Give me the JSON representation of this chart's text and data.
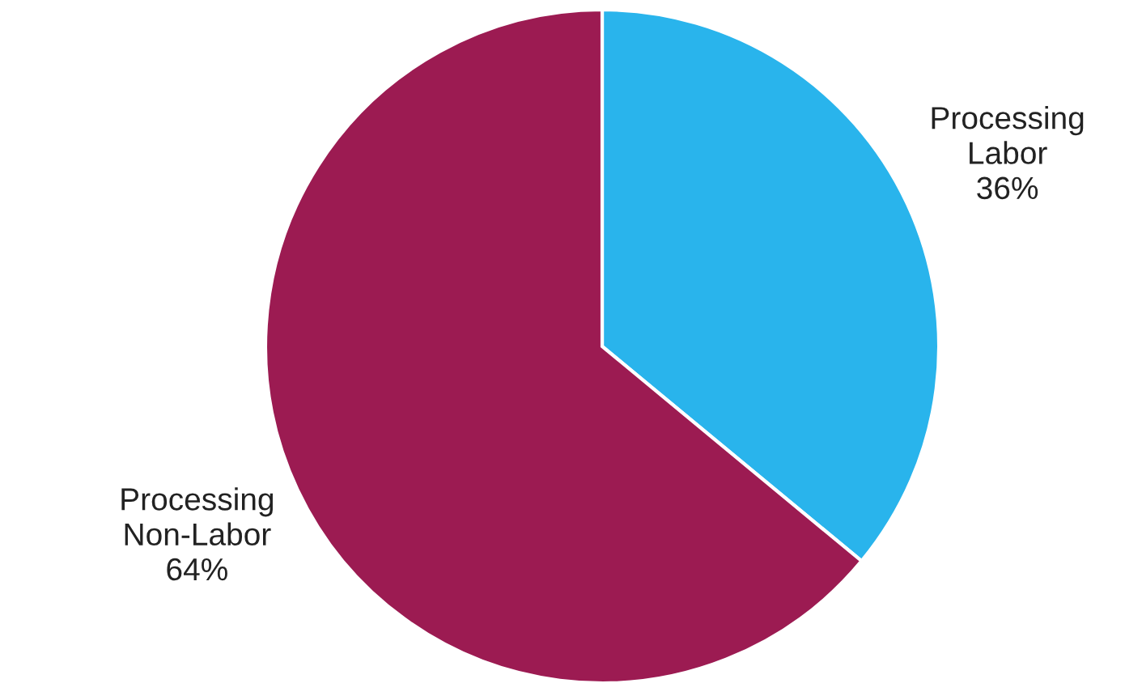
{
  "chart_data": {
    "type": "pie",
    "categories": [
      "Processing\nLabor",
      "Processing\nNon-Labor"
    ],
    "values": [
      36,
      64
    ],
    "value_labels": [
      "36%",
      "64%"
    ],
    "colors": [
      "#29b4ec",
      "#9c1b52"
    ]
  }
}
